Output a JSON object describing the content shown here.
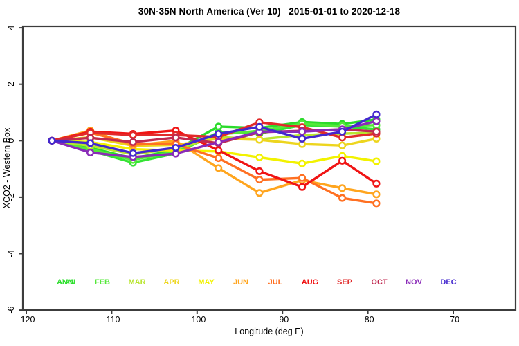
{
  "chart_data": {
    "type": "line",
    "title": "30N-35N North America (Ver 10)   2015-01-01 to 2020-12-18",
    "xlabel": "Longitude (deg E)",
    "ylabel": "XCO2 - Western Box",
    "xlim": [
      -120,
      -62.5
    ],
    "ylim": [
      -6,
      4
    ],
    "x_ticks": [
      -120,
      -110,
      -100,
      -90,
      -80,
      -70
    ],
    "y_ticks": [
      -6,
      -4,
      -2,
      0,
      2,
      4
    ],
    "grid": false,
    "marker": "open-circle",
    "legend_position": "bottom",
    "x": [
      -117,
      -112.5,
      -107.5,
      -102.5,
      -97.5,
      -92.7,
      -87.7,
      -83,
      -79
    ],
    "series": [
      {
        "name": "ANN",
        "color": "#2bdb2b",
        "values": [
          0,
          -0.25,
          -0.62,
          -0.33,
          0.5,
          0.45,
          0.66,
          0.59,
          0.75
        ]
      },
      {
        "name": "JAN",
        "color": "#35e335",
        "values": [
          0,
          -0.35,
          -0.78,
          -0.45,
          0.3,
          0.25,
          0.55,
          0.5,
          0.4
        ]
      },
      {
        "name": "FEB",
        "color": "#55e83a",
        "values": [
          0,
          -0.3,
          -0.68,
          -0.38,
          0.22,
          0.35,
          0.6,
          0.52,
          0.55
        ]
      },
      {
        "name": "MAR",
        "color": "#b8e52e",
        "values": [
          0,
          -0.18,
          -0.48,
          -0.28,
          0.13,
          0.05,
          0.2,
          0.25,
          0.28
        ]
      },
      {
        "name": "APR",
        "color": "#edd51e",
        "values": [
          0,
          0.12,
          -0.18,
          -0.15,
          0.07,
          0.03,
          -0.12,
          -0.17,
          0.07
        ]
      },
      {
        "name": "MAY",
        "color": "#f2f200",
        "values": [
          0,
          -0.05,
          -0.3,
          -0.35,
          -0.38,
          -0.59,
          -0.81,
          -0.54,
          -0.73
        ]
      },
      {
        "name": "JUN",
        "color": "#ffa51e",
        "values": [
          0,
          0.36,
          -0.17,
          -0.01,
          -0.97,
          -1.85,
          -1.4,
          -1.68,
          -1.9
        ]
      },
      {
        "name": "JUL",
        "color": "#ff7022",
        "values": [
          0,
          0.28,
          -0.1,
          -0.12,
          -0.62,
          -1.38,
          -1.32,
          -2.03,
          -2.22
        ]
      },
      {
        "name": "AUG",
        "color": "#f01414",
        "values": [
          0,
          0.32,
          0.24,
          0.36,
          -0.34,
          -1.08,
          -1.64,
          -0.71,
          -1.52
        ]
      },
      {
        "name": "SEP",
        "color": "#e12a2a",
        "values": [
          0,
          0.28,
          0.2,
          0.2,
          0.13,
          0.65,
          0.48,
          0.11,
          0.25
        ]
      },
      {
        "name": "OCT",
        "color": "#c02a50",
        "values": [
          0,
          0.1,
          -0.05,
          0.11,
          -0.09,
          0.3,
          0.35,
          0.4,
          0.32
        ]
      },
      {
        "name": "NOV",
        "color": "#8a2bb8",
        "values": [
          0,
          -0.42,
          -0.58,
          -0.46,
          -0.05,
          0.32,
          0.32,
          0.4,
          0.69
        ]
      },
      {
        "name": "DEC",
        "color": "#4328ce",
        "values": [
          0,
          -0.09,
          -0.44,
          -0.25,
          0.24,
          0.49,
          0.07,
          0.32,
          0.93
        ]
      }
    ]
  }
}
